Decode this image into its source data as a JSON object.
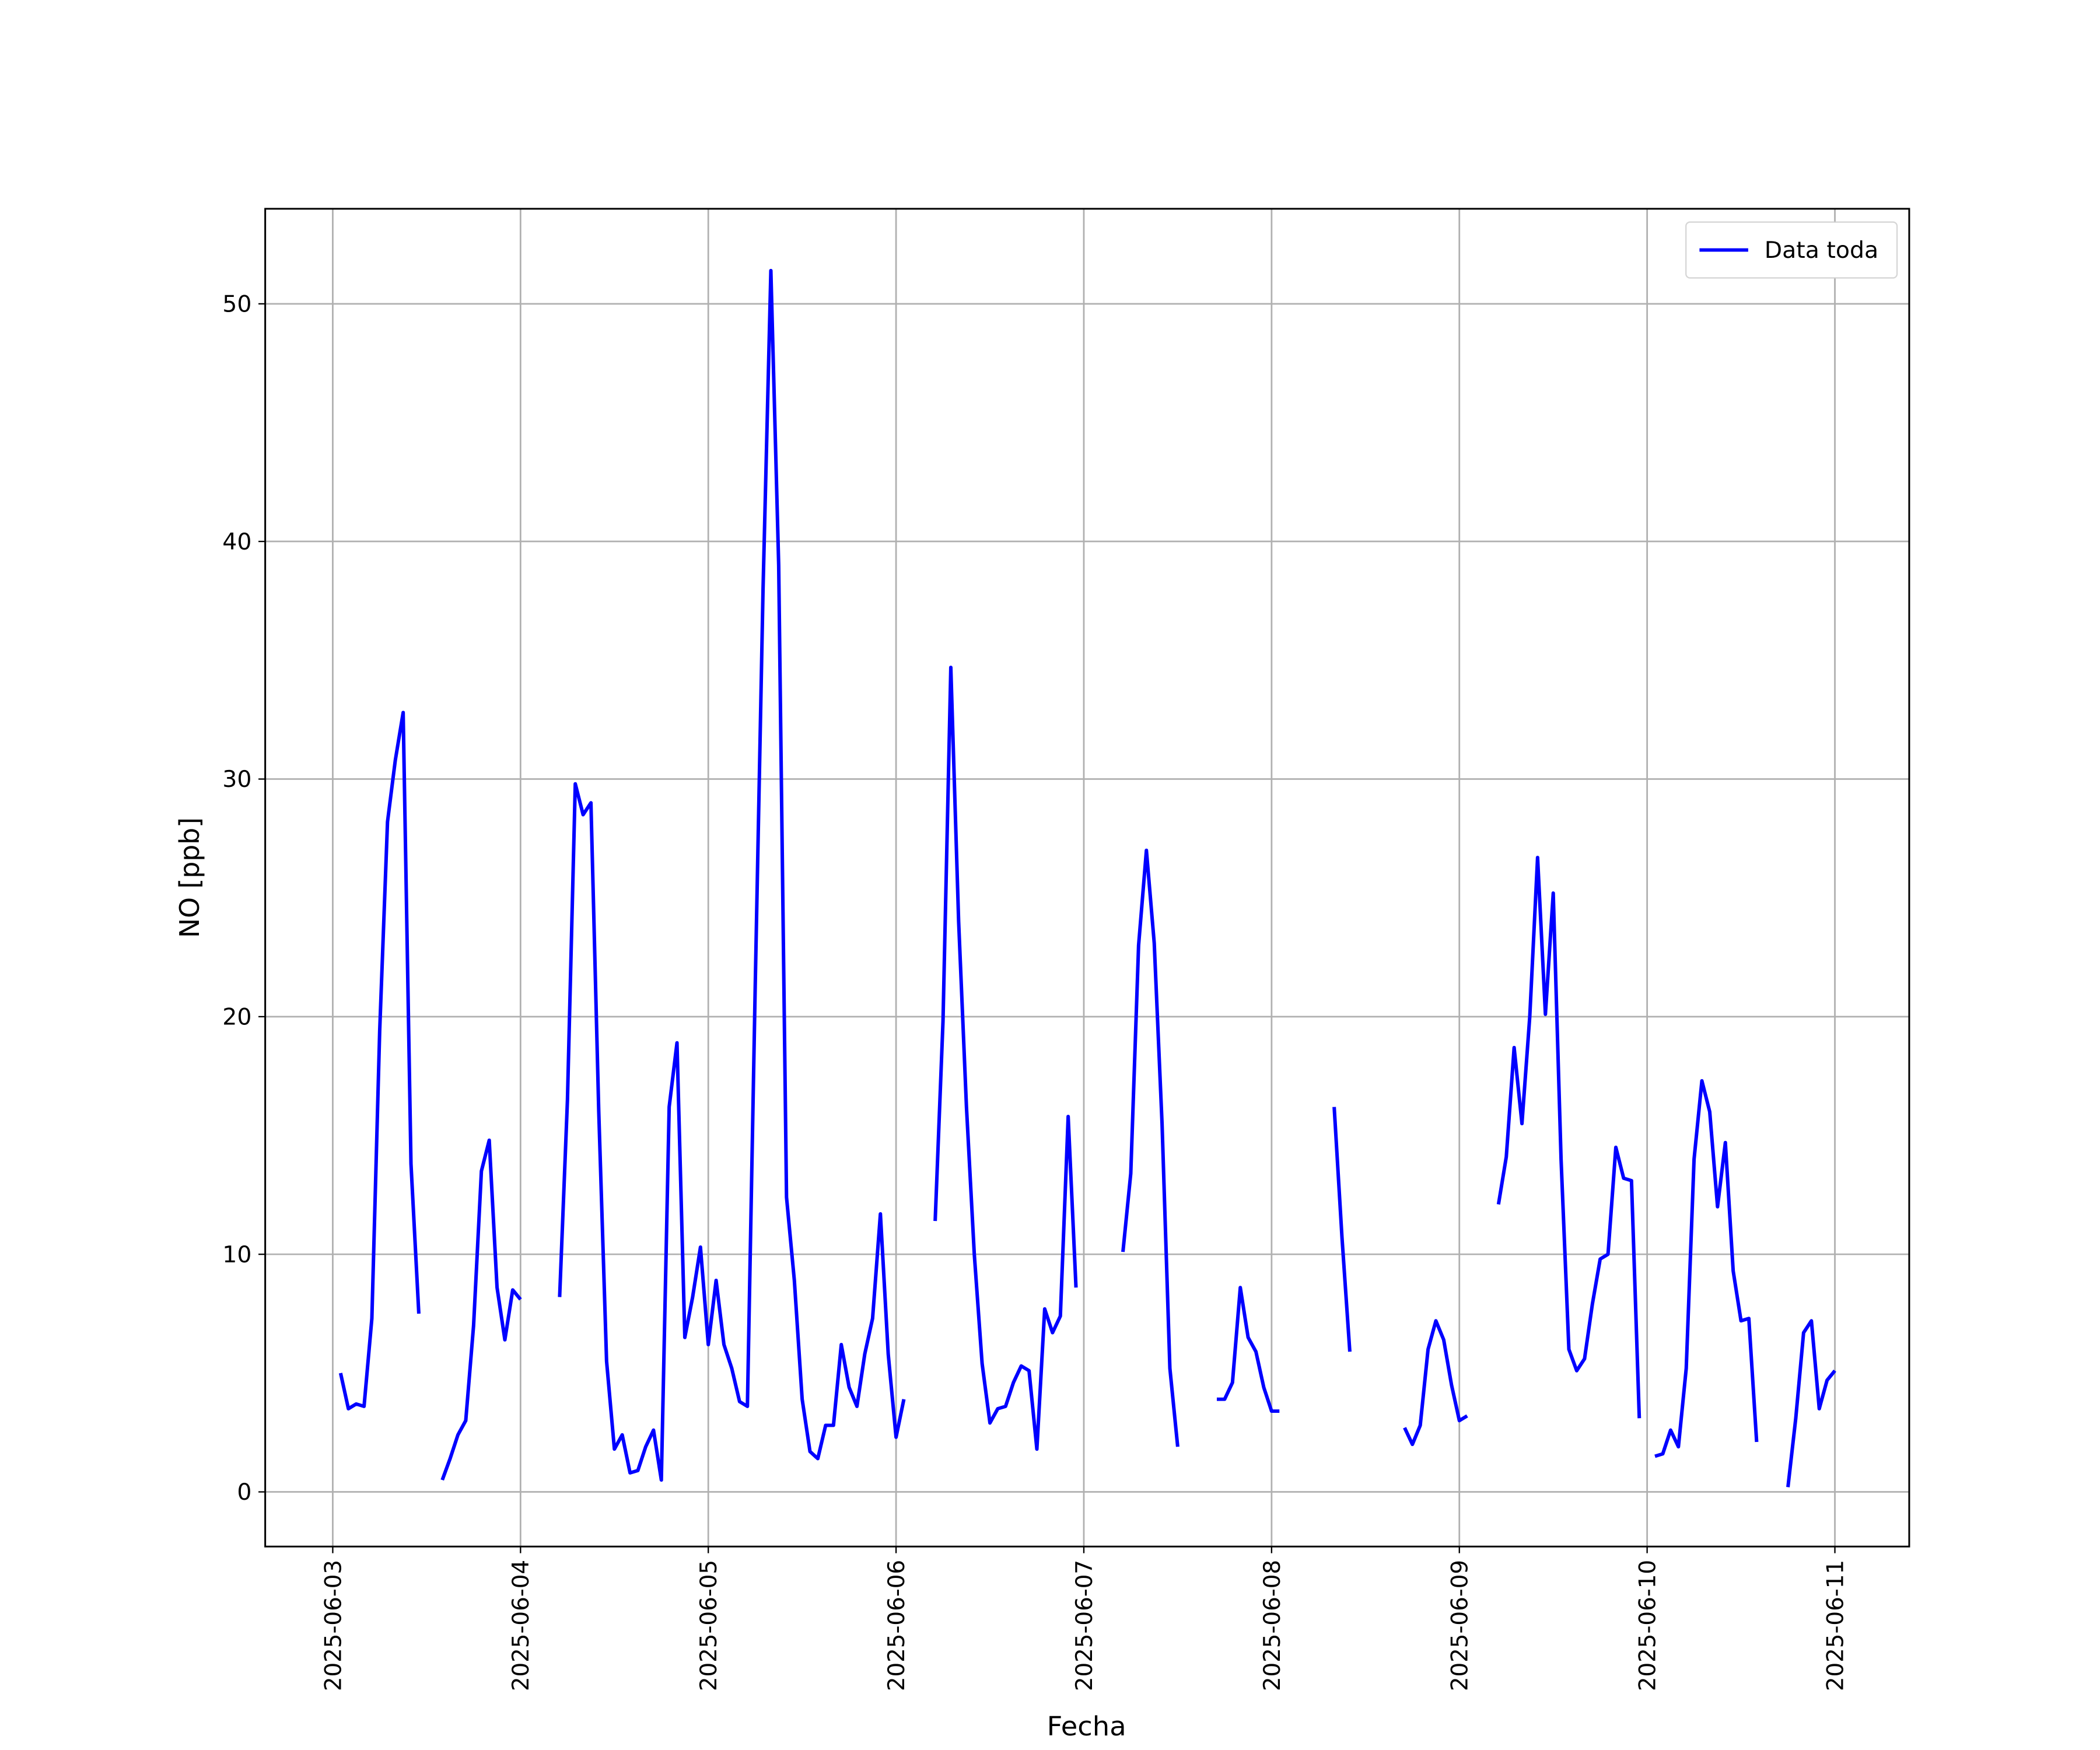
{
  "chart_data": {
    "type": "line",
    "xlabel": "Fecha",
    "ylabel": "NO [ppb]",
    "xlim": [
      "2025-06-02 15:22",
      "2025-06-11 09:30"
    ],
    "xticks": [
      "2025-06-03",
      "2025-06-04",
      "2025-06-05",
      "2025-06-06",
      "2025-06-07",
      "2025-06-08",
      "2025-06-09",
      "2025-06-10",
      "2025-06-11"
    ],
    "ylim": [
      -2.3,
      54
    ],
    "yticks": [
      0,
      10,
      20,
      30,
      40,
      50
    ],
    "grid": true,
    "legend": "upper right",
    "x": [
      "2025-06-03 01:00",
      "2025-06-03 02:00",
      "2025-06-03 03:00",
      "2025-06-03 04:00",
      "2025-06-03 05:00",
      "2025-06-03 06:00",
      "2025-06-03 07:00",
      "2025-06-03 08:00",
      "2025-06-03 09:00",
      "2025-06-03 10:00",
      "2025-06-03 11:00",
      "2025-06-03 12:00",
      "2025-06-03 14:00",
      "2025-06-03 15:00",
      "2025-06-03 16:00",
      "2025-06-03 17:00",
      "2025-06-03 18:00",
      "2025-06-03 19:00",
      "2025-06-03 20:00",
      "2025-06-03 21:00",
      "2025-06-03 22:00",
      "2025-06-03 23:00",
      "2025-06-04 00:00",
      "2025-06-04 01:00",
      "2025-06-04 05:00",
      "2025-06-04 06:00",
      "2025-06-04 07:00",
      "2025-06-04 08:00",
      "2025-06-04 09:00",
      "2025-06-04 10:00",
      "2025-06-04 11:00",
      "2025-06-04 12:00",
      "2025-06-04 13:00",
      "2025-06-04 14:00",
      "2025-06-04 15:00",
      "2025-06-04 16:00",
      "2025-06-04 17:00",
      "2025-06-04 18:00",
      "2025-06-04 19:00",
      "2025-06-04 20:00",
      "2025-06-04 21:00",
      "2025-06-04 22:00",
      "2025-06-04 23:00",
      "2025-06-05 00:00",
      "2025-06-05 01:00",
      "2025-06-05 02:00",
      "2025-06-05 03:00",
      "2025-06-05 04:00",
      "2025-06-05 05:00",
      "2025-06-05 06:00",
      "2025-06-05 07:00",
      "2025-06-05 08:00",
      "2025-06-05 09:00",
      "2025-06-05 10:00",
      "2025-06-05 11:00",
      "2025-06-05 12:00",
      "2025-06-05 13:00",
      "2025-06-05 14:00",
      "2025-06-05 15:00",
      "2025-06-05 16:00",
      "2025-06-05 17:00",
      "2025-06-05 18:00",
      "2025-06-05 19:00",
      "2025-06-05 20:00",
      "2025-06-05 21:00",
      "2025-06-05 22:00",
      "2025-06-05 23:00",
      "2025-06-06 00:00",
      "2025-06-06 01:00",
      "2025-06-06 02:00",
      "2025-06-06 05:00",
      "2025-06-06 06:00",
      "2025-06-06 07:00",
      "2025-06-06 08:00",
      "2025-06-06 09:00",
      "2025-06-06 10:00",
      "2025-06-06 11:00",
      "2025-06-06 12:00",
      "2025-06-06 13:00",
      "2025-06-06 14:00",
      "2025-06-06 15:00",
      "2025-06-06 16:00",
      "2025-06-06 17:00",
      "2025-06-06 18:00",
      "2025-06-06 19:00",
      "2025-06-06 20:00",
      "2025-06-06 21:00",
      "2025-06-06 22:00",
      "2025-06-06 23:00",
      "2025-06-07 00:00",
      "2025-06-07 05:00",
      "2025-06-07 06:00",
      "2025-06-07 07:00",
      "2025-06-07 08:00",
      "2025-06-07 09:00",
      "2025-06-07 10:00",
      "2025-06-07 11:00",
      "2025-06-07 12:00",
      "2025-06-07 13:00",
      "2025-06-07 17:00",
      "2025-06-07 18:00",
      "2025-06-07 19:00",
      "2025-06-07 20:00",
      "2025-06-07 21:00",
      "2025-06-07 22:00",
      "2025-06-07 23:00",
      "2025-06-08 00:00",
      "2025-06-08 01:00",
      "2025-06-08 02:00",
      "2025-06-08 08:00",
      "2025-06-08 09:00",
      "2025-06-08 10:00",
      "2025-06-08 11:00",
      "2025-06-08 17:00",
      "2025-06-08 18:00",
      "2025-06-08 19:00",
      "2025-06-08 20:00",
      "2025-06-08 21:00",
      "2025-06-08 22:00",
      "2025-06-08 23:00",
      "2025-06-09 00:00",
      "2025-06-09 01:00",
      "2025-06-09 02:00",
      "2025-06-09 05:00",
      "2025-06-09 06:00",
      "2025-06-09 07:00",
      "2025-06-09 08:00",
      "2025-06-09 09:00",
      "2025-06-09 10:00",
      "2025-06-09 11:00",
      "2025-06-09 12:00",
      "2025-06-09 13:00",
      "2025-06-09 14:00",
      "2025-06-09 15:00",
      "2025-06-09 16:00",
      "2025-06-09 17:00",
      "2025-06-09 18:00",
      "2025-06-09 19:00",
      "2025-06-09 20:00",
      "2025-06-09 21:00",
      "2025-06-09 22:00",
      "2025-06-09 23:00",
      "2025-06-10 00:00",
      "2025-06-10 01:00",
      "2025-06-10 02:00",
      "2025-06-10 03:00",
      "2025-06-10 04:00",
      "2025-06-10 05:00",
      "2025-06-10 06:00",
      "2025-06-10 07:00",
      "2025-06-10 08:00",
      "2025-06-10 09:00",
      "2025-06-10 10:00",
      "2025-06-10 11:00",
      "2025-06-10 12:00",
      "2025-06-10 13:00",
      "2025-06-10 14:00",
      "2025-06-10 15:00",
      "2025-06-10 18:00",
      "2025-06-10 19:00",
      "2025-06-10 20:00",
      "2025-06-10 21:00",
      "2025-06-10 22:00",
      "2025-06-10 23:00",
      "2025-06-11 00:00"
    ],
    "series": [
      {
        "name": "Data toda",
        "color": "#0000ff",
        "values": [
          5.0,
          3.5,
          3.7,
          3.6,
          7.3,
          19.4,
          28.2,
          30.8,
          32.8,
          13.8,
          7.5,
          null,
          0.5,
          1.4,
          2.4,
          3.0,
          7.0,
          13.5,
          14.8,
          8.6,
          6.4,
          8.5,
          8.1,
          null,
          8.2,
          16.5,
          29.8,
          28.5,
          29.0,
          16.0,
          5.5,
          1.8,
          2.4,
          0.8,
          0.9,
          1.9,
          2.6,
          0.5,
          16.2,
          18.9,
          6.5,
          8.2,
          10.3,
          6.2,
          8.9,
          6.2,
          5.2,
          3.8,
          3.6,
          21.3,
          38.0,
          51.4,
          39.0,
          12.4,
          8.9,
          3.9,
          1.7,
          1.4,
          2.8,
          2.8,
          6.2,
          4.4,
          3.6,
          5.8,
          7.3,
          11.7,
          5.8,
          2.3,
          3.9,
          null,
          11.4,
          19.8,
          34.7,
          24.0,
          16.2,
          10.0,
          5.4,
          2.9,
          3.5,
          3.6,
          4.6,
          5.3,
          5.1,
          1.8,
          7.7,
          6.7,
          7.4,
          15.8,
          8.6,
          null,
          10.1,
          13.4,
          23.0,
          27.0,
          23.1,
          15.5,
          5.2,
          1.9,
          null,
          3.9,
          3.9,
          4.6,
          8.6,
          6.5,
          5.9,
          4.4,
          3.4,
          3.4,
          null,
          16.2,
          10.7,
          5.9,
          null,
          2.7,
          2.0,
          2.8,
          6.0,
          7.2,
          6.4,
          4.5,
          3.0,
          3.2,
          null,
          12.1,
          14.1,
          18.7,
          15.5,
          20.0,
          26.7,
          20.1,
          25.2,
          14.0,
          6.0,
          5.1,
          5.6,
          7.9,
          9.8,
          10.0,
          14.5,
          13.2,
          13.1,
          3.1,
          null,
          1.5,
          1.6,
          2.6,
          1.9,
          5.2,
          14.0,
          17.3,
          16.0,
          12.0,
          14.7,
          9.3,
          7.2,
          7.3,
          2.1,
          null,
          0.2,
          3.1,
          6.7,
          7.2,
          3.5,
          4.7,
          5.1
        ]
      }
    ]
  }
}
